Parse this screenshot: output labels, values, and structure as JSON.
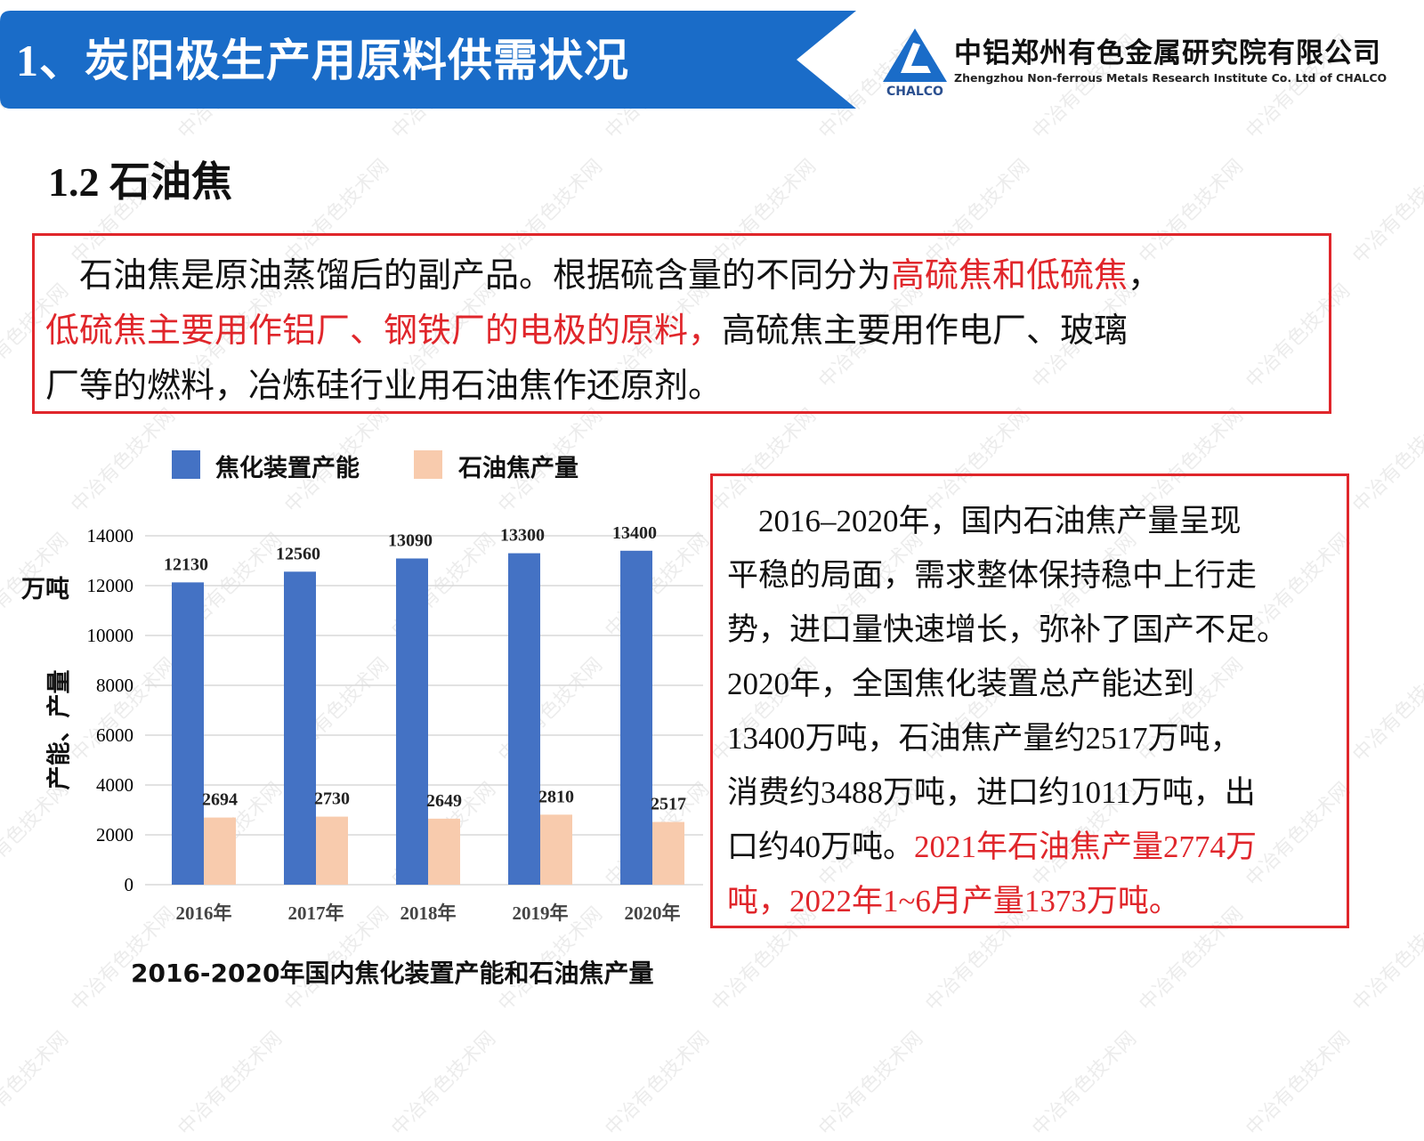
{
  "header": {
    "title": "1、炭阳极生产用原料供需状况",
    "banner_color": "#1a6cc8",
    "company_cn": "中铝郑州有色金属研究院有限公司",
    "company_en": "Zhengzhou Non-ferrous Metals Research Institute Co. Ltd of CHALCO",
    "logo_text": "CHALCO"
  },
  "section_title": "1.2 石油焦",
  "intro_box": {
    "lines": [
      [
        {
          "text": "　石油焦是原油蒸馏后的副产品。根据硫含量的不同分为",
          "red": false
        },
        {
          "text": "高硫焦和低硫焦",
          "red": true
        },
        {
          "text": "，",
          "red": false
        }
      ],
      [
        {
          "text": "低硫焦主要用作铝厂、钢铁厂的电极的原料，",
          "red": true
        },
        {
          "text": "高硫焦主要用作电厂、玻璃",
          "red": false
        }
      ],
      [
        {
          "text": "厂等的燃料，冶炼硅行业用石油焦作还原剂。",
          "red": false
        }
      ]
    ]
  },
  "summary_box": {
    "lines": [
      [
        {
          "text": "　2016–2020年，国内石油焦产量呈现",
          "red": false
        }
      ],
      [
        {
          "text": "平稳的局面，需求整体保持稳中上行走",
          "red": false
        }
      ],
      [
        {
          "text": "势，进口量快速增长，弥补了国产不足。",
          "red": false
        }
      ],
      [
        {
          "text": "2020年，全国焦化装置总产能达到",
          "red": false
        }
      ],
      [
        {
          "text": "13400万吨，石油焦产量约2517万吨，",
          "red": false
        }
      ],
      [
        {
          "text": "消费约3488万吨，进口约1011万吨，出",
          "red": false
        }
      ],
      [
        {
          "text": "口约40万吨。",
          "red": false
        },
        {
          "text": "2021年石油焦产量2774万",
          "red": true
        }
      ],
      [
        {
          "text": "吨，2022年1~6月产量1373万吨。",
          "red": true
        }
      ]
    ]
  },
  "watermark": "中冶有色技术网",
  "chart_data": {
    "type": "bar",
    "title": "2016-2020年国内焦化装置产能和石油焦产量",
    "ylabel_unit": "万吨",
    "ylabel": "产能、产量",
    "xlabel": "",
    "categories": [
      "2016年",
      "2017年",
      "2018年",
      "2019年",
      "2020年"
    ],
    "ylim": [
      0,
      14000
    ],
    "yticks": [
      "0",
      "2000",
      "4000",
      "6000",
      "8000",
      "10000",
      "12000",
      "14000"
    ],
    "grid": true,
    "legend_position": "top",
    "series": [
      {
        "name": "焦化装置产能",
        "color": "#4472c4",
        "values": [
          12130,
          12560,
          13090,
          13300,
          13400
        ],
        "labels": [
          "12130",
          "12560",
          "13090",
          "13300",
          "13400"
        ]
      },
      {
        "name": "石油焦产量",
        "color": "#f8cbad",
        "values": [
          2694,
          2730,
          2649,
          2810,
          2517
        ],
        "labels": [
          "2694",
          "2730",
          "2649",
          "2810",
          "2517"
        ]
      }
    ]
  }
}
